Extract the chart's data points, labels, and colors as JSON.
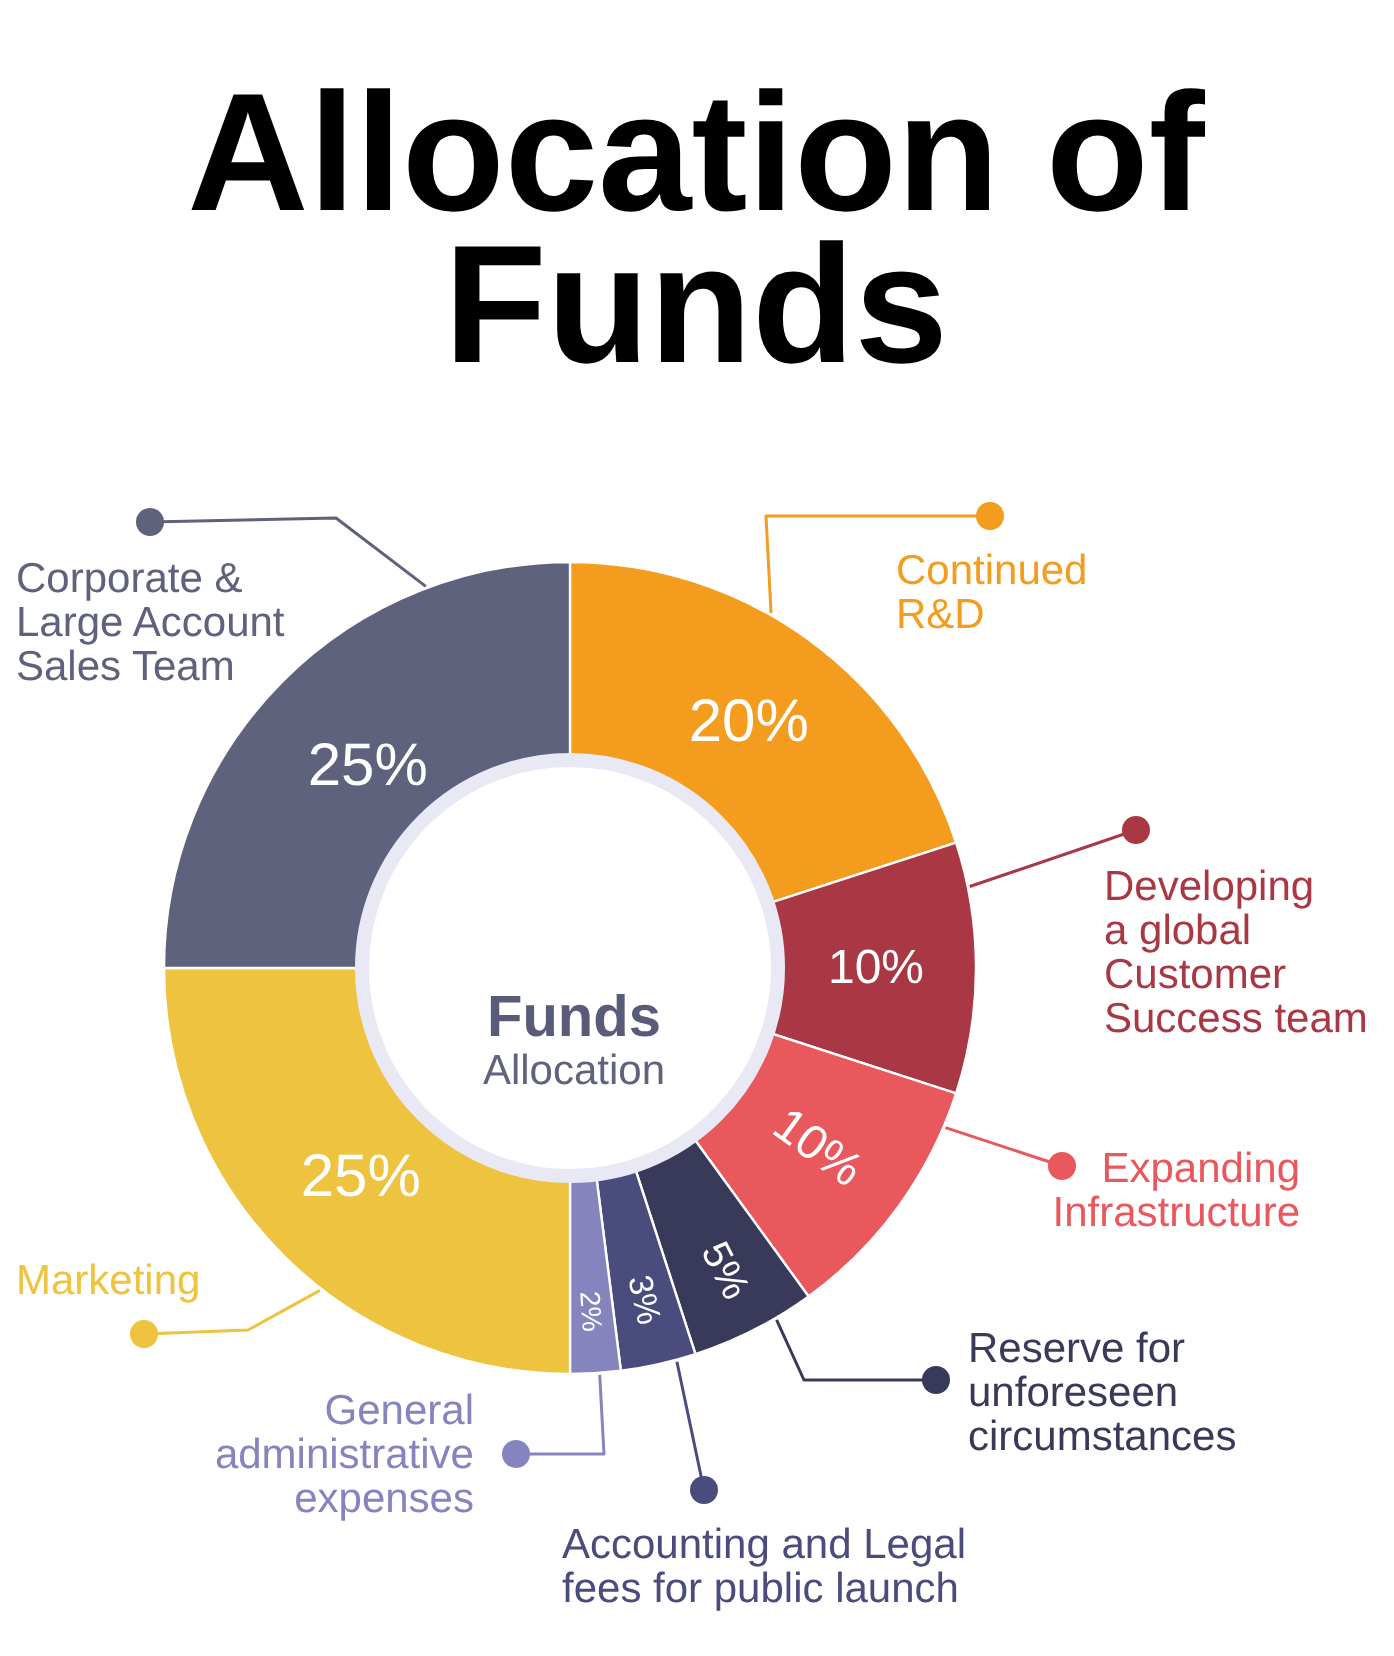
{
  "chart_data": {
    "type": "donut",
    "title": "Allocation of Funds",
    "categories": [
      "Continued R&D",
      "Developing a global Customer Success team",
      "Expanding Infrastructure",
      "Reserve for unforeseen circumstances",
      "Accounting and Legal fees for public launch",
      "General administrative expenses",
      "Marketing",
      "Corporate & Large Account Sales Team"
    ],
    "values": [
      20,
      10,
      10,
      5,
      3,
      2,
      25,
      25
    ],
    "colors": [
      "#f39c1e",
      "#a93844",
      "#e8585c",
      "#393a5a",
      "#4b4c7e",
      "#8584bf",
      "#edc340",
      "#5e627c"
    ],
    "value_labels": [
      "20%",
      "10%",
      "10%",
      "5%",
      "3%",
      "2%",
      "25%",
      "25%"
    ],
    "legend": "right",
    "annotations": [
      "Funds",
      "Allocation"
    ]
  }
}
